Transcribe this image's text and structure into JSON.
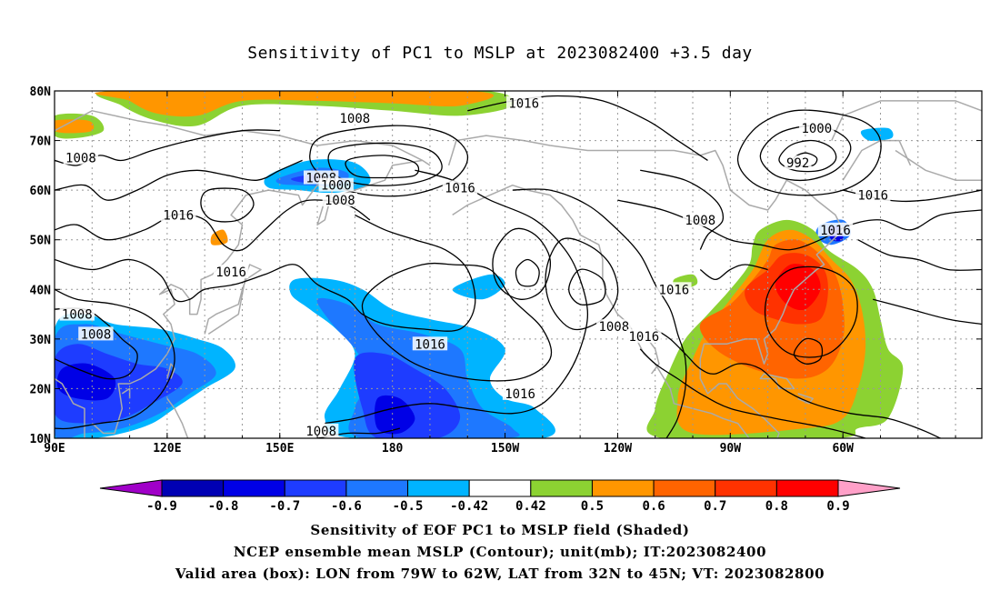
{
  "title": "Sensitivity of PC1 to MSLP at 2023082400 +3.5 day",
  "map": {
    "lat_labels": [
      "80N",
      "70N",
      "60N",
      "50N",
      "40N",
      "30N",
      "20N",
      "10N"
    ],
    "lon_labels": [
      "90E",
      "120E",
      "150E",
      "180",
      "150W",
      "120W",
      "90W",
      "60W"
    ],
    "contour_labels": [
      {
        "text": "1016",
        "lon": -145,
        "lat": 77.5
      },
      {
        "text": "1008",
        "lon": 170,
        "lat": 74.5
      },
      {
        "text": "1008",
        "lon": 97,
        "lat": 66.5
      },
      {
        "text": "1008",
        "lon": 161,
        "lat": 62.5
      },
      {
        "text": "1000",
        "lon": 165,
        "lat": 61
      },
      {
        "text": "1008",
        "lon": 166,
        "lat": 58
      },
      {
        "text": "1016",
        "lon": -162,
        "lat": 60.5
      },
      {
        "text": "1016",
        "lon": 123,
        "lat": 55
      },
      {
        "text": "1000",
        "lon": -67,
        "lat": 72.5
      },
      {
        "text": "992",
        "lon": -72,
        "lat": 65.5
      },
      {
        "text": "1016",
        "lon": -52,
        "lat": 59
      },
      {
        "text": "1008",
        "lon": -98,
        "lat": 54
      },
      {
        "text": "1016",
        "lon": -62,
        "lat": 52
      },
      {
        "text": "1016",
        "lon": 137,
        "lat": 43.5
      },
      {
        "text": "1016",
        "lon": -105,
        "lat": 40
      },
      {
        "text": "1008",
        "lon": 96,
        "lat": 35
      },
      {
        "text": "1008",
        "lon": 101,
        "lat": 31
      },
      {
        "text": "1016",
        "lon": -170,
        "lat": 29
      },
      {
        "text": "1008",
        "lon": -121,
        "lat": 32.5
      },
      {
        "text": "1016",
        "lon": -113,
        "lat": 30.5
      },
      {
        "text": "1016",
        "lon": -146,
        "lat": 19
      },
      {
        "text": "1008",
        "lon": 161,
        "lat": 11.5
      }
    ],
    "valid_box": {
      "lon_west": -79,
      "lon_east": -62,
      "lat_south": 32,
      "lat_north": 45
    }
  },
  "colorbar": {
    "labels": [
      "-0.9",
      "-0.8",
      "-0.7",
      "-0.6",
      "-0.5",
      "-0.42",
      "0.42",
      "0.5",
      "0.6",
      "0.7",
      "0.8",
      "0.9"
    ],
    "colors": [
      "#a000c8",
      "#0000b4",
      "#0000e6",
      "#1e3cff",
      "#1e78ff",
      "#00b4ff",
      "#ffffff",
      "#8cd232",
      "#ff9600",
      "#ff6400",
      "#ff3200",
      "#ff0000",
      "#ffa0c8"
    ]
  },
  "captions": {
    "line1": "Sensitivity of EOF PC1 to MSLP field (Shaded)",
    "line2": "NCEP ensemble mean MSLP (Contour); unit(mb); IT:2023082400",
    "line3": "Valid area (box): LON from 79W to 62W, LAT from 32N to 45N; VT: 2023082800"
  }
}
